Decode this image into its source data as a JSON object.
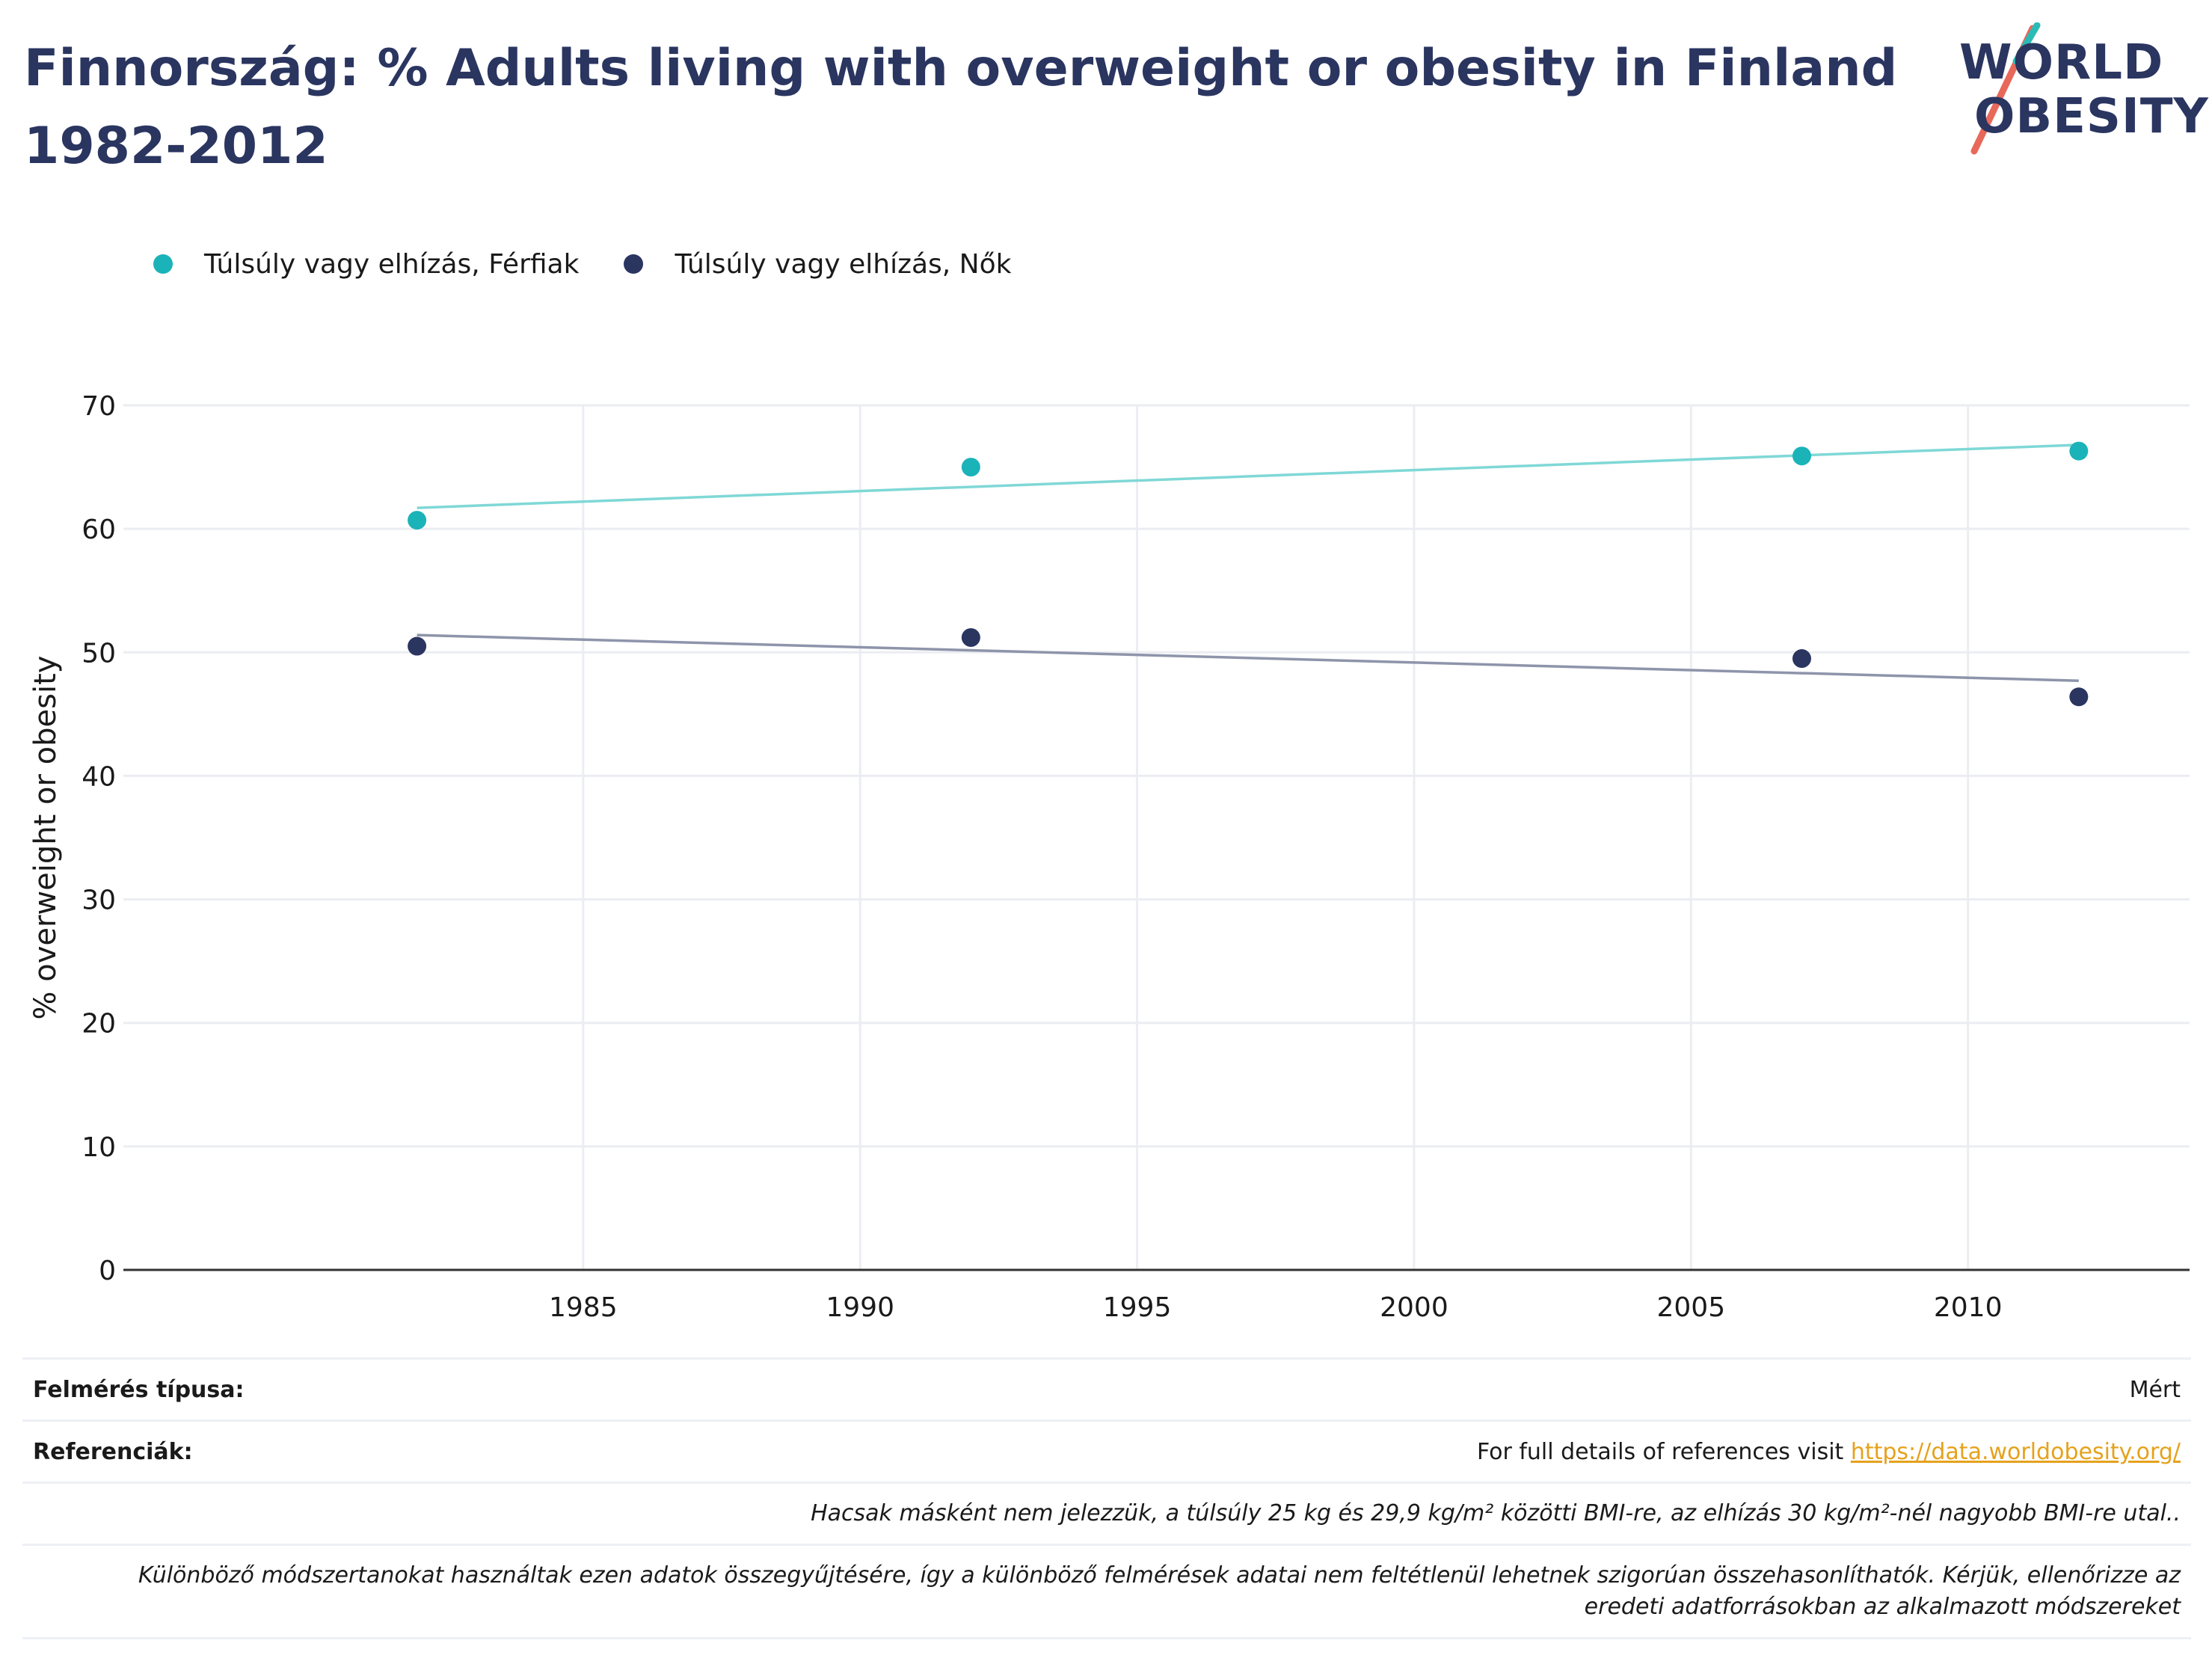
{
  "title": "Finnország: % Adults living with overweight or obesity in Finland 1982-2012",
  "logo": {
    "line1": "WORLD",
    "line2": "OBESITY",
    "accent_teal": "#2bbbb6",
    "accent_red": "#e8685a"
  },
  "colors": {
    "men": "#1ab3b8",
    "women": "#2a3560",
    "men_trend": "#7fd8d6",
    "women_trend": "#8e94aa",
    "grid": "#ebedf2",
    "axis": "#333333"
  },
  "chart_data": {
    "type": "scatter",
    "title": "Finnország: % Adults living with overweight or obesity in Finland 1982-2012",
    "xlabel": "",
    "ylabel": "% overweight or obesity",
    "xlim": [
      1976.7,
      2014.0
    ],
    "ylim": [
      0,
      70
    ],
    "xticks": [
      1985,
      1990,
      1995,
      2000,
      2005,
      2010
    ],
    "yticks": [
      0,
      10,
      20,
      30,
      40,
      50,
      60,
      70
    ],
    "grid": true,
    "legend_position": "top-left",
    "series": [
      {
        "name": "Túlsúly vagy elhízás, Férfiak",
        "color": "#1ab3b8",
        "trend_color": "#7fd8d6",
        "x": [
          1982,
          1992,
          2007,
          2012
        ],
        "y": [
          60.7,
          65.0,
          65.9,
          66.3
        ],
        "trendline": {
          "x": [
            1982,
            2012
          ],
          "y": [
            61.7,
            66.8
          ]
        }
      },
      {
        "name": "Túlsúly vagy elhízás, Nők",
        "color": "#2a3560",
        "trend_color": "#8e94aa",
        "x": [
          1982,
          1992,
          2007,
          2012
        ],
        "y": [
          50.5,
          51.2,
          49.5,
          46.4
        ],
        "trendline": {
          "x": [
            1982,
            2012
          ],
          "y": [
            51.4,
            47.7
          ]
        }
      }
    ]
  },
  "footer": {
    "survey_type_label": "Felmérés típusa:",
    "survey_type_value": "Mért",
    "references_label": "Referenciák:",
    "references_text": "For full details of references visit ",
    "references_link": "https://data.worldobesity.org/",
    "note1": "Hacsak másként nem jelezzük, a túlsúly 25 kg és 29,9 kg/m² közötti BMI-re, az elhízás 30 kg/m²-nél nagyobb BMI-re utal..",
    "note2_line1": "Különböző módszertanokat használtak ezen adatok összegyűjtésére, így a különböző felmérések adatai nem feltétlenül lehetnek szigorúan összehasonlíthatók. Kérjük, ellenőrizze az",
    "note2_line2": "eredeti adatforrásokban az alkalmazott módszereket"
  }
}
